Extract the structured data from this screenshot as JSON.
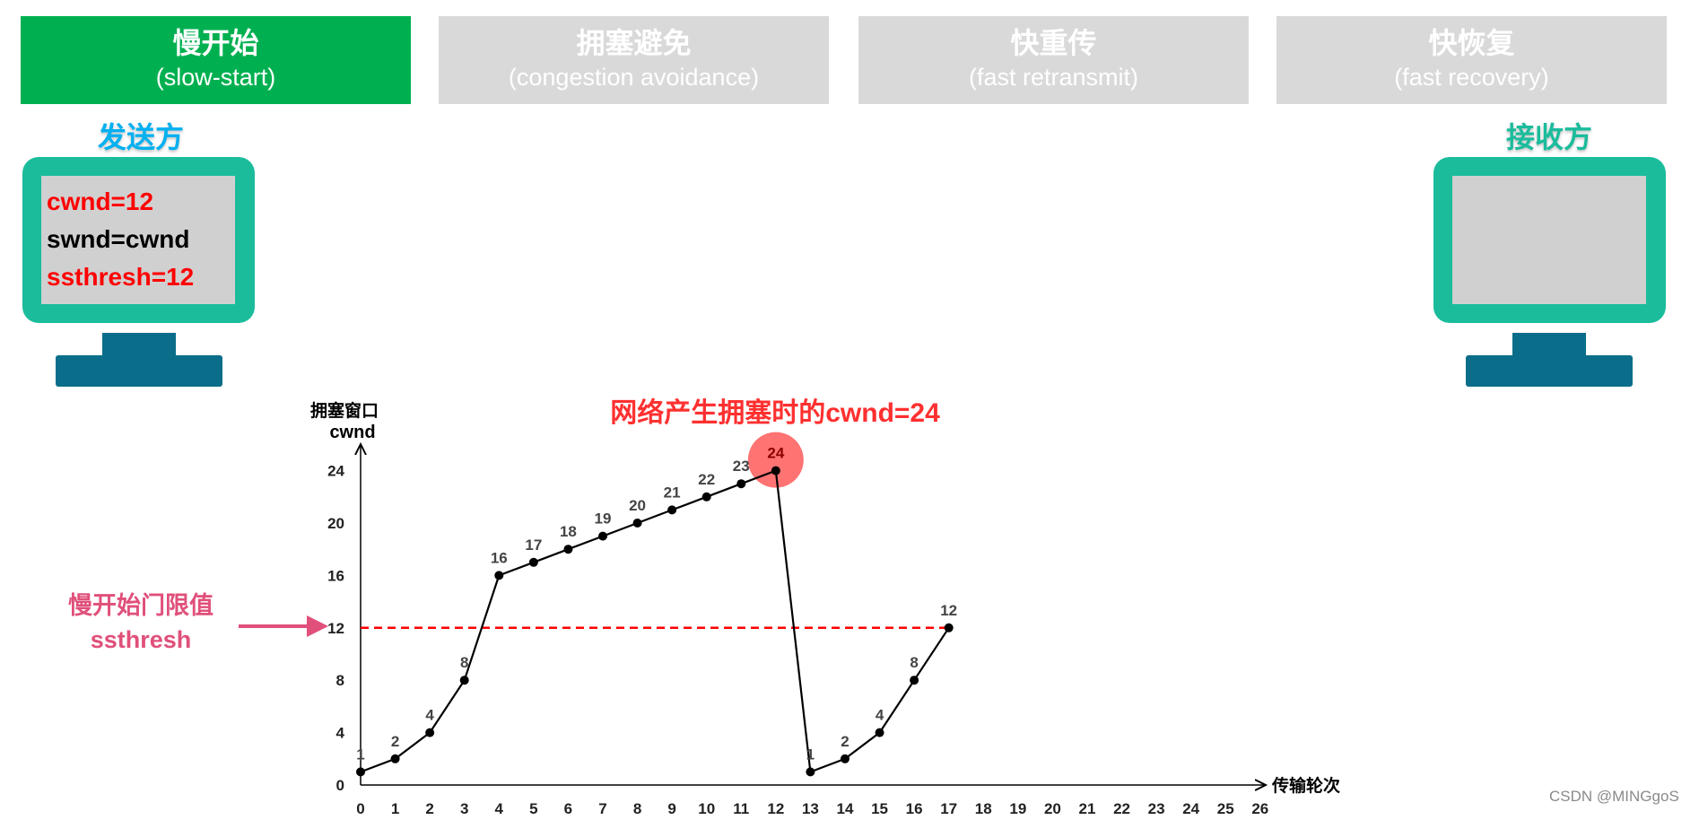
{
  "tabs": [
    {
      "zh": "慢开始",
      "en": "(slow-start)",
      "active": true
    },
    {
      "zh": "拥塞避免",
      "en": "(congestion avoidance)",
      "active": false
    },
    {
      "zh": "快重传",
      "en": "(fast retransmit)",
      "active": false
    },
    {
      "zh": "快恢复",
      "en": "(fast recovery)",
      "active": false
    }
  ],
  "sender": {
    "label": "发送方",
    "lines": [
      {
        "text": "cwnd=12",
        "color": "#ff0000"
      },
      {
        "text": "swnd=cwnd",
        "color": "#000000"
      },
      {
        "text": "ssthresh=12",
        "color": "#ff0000"
      }
    ]
  },
  "receiver": {
    "label": "接收方"
  },
  "colors": {
    "accent": "#00b050",
    "inactive_tab": "#d9d9d9",
    "monitor": "#1abc9c",
    "stand": "#0a6e8a",
    "sender_label": "#00b0f0",
    "threshold": "#ff0000",
    "annotation": "#e0507a"
  },
  "threshold_label": {
    "zh": "慢开始门限值",
    "en": "ssthresh"
  },
  "chart_data": {
    "type": "line",
    "title": "网络产生拥塞时的cwnd=24",
    "ylabel_zh": "拥塞窗口",
    "ylabel": "cwnd",
    "xlabel": "传输轮次",
    "xticks": [
      0,
      1,
      2,
      3,
      4,
      5,
      6,
      7,
      8,
      9,
      10,
      11,
      12,
      13,
      14,
      15,
      16,
      17,
      18,
      19,
      20,
      21,
      22,
      23,
      24,
      25,
      26
    ],
    "yticks": [
      0,
      4,
      8,
      12,
      16,
      20,
      24
    ],
    "xlim": [
      0,
      26
    ],
    "ylim": [
      0,
      24
    ],
    "x": [
      0,
      1,
      2,
      3,
      4,
      5,
      6,
      7,
      8,
      9,
      10,
      11,
      12,
      13,
      14,
      15,
      16,
      17
    ],
    "values": [
      1,
      2,
      4,
      8,
      16,
      17,
      18,
      19,
      20,
      21,
      22,
      23,
      24,
      1,
      2,
      4,
      8,
      12
    ],
    "threshold": 12,
    "highlight_x": 12,
    "grid": false
  },
  "watermark": "CSDN @MINGgoS"
}
